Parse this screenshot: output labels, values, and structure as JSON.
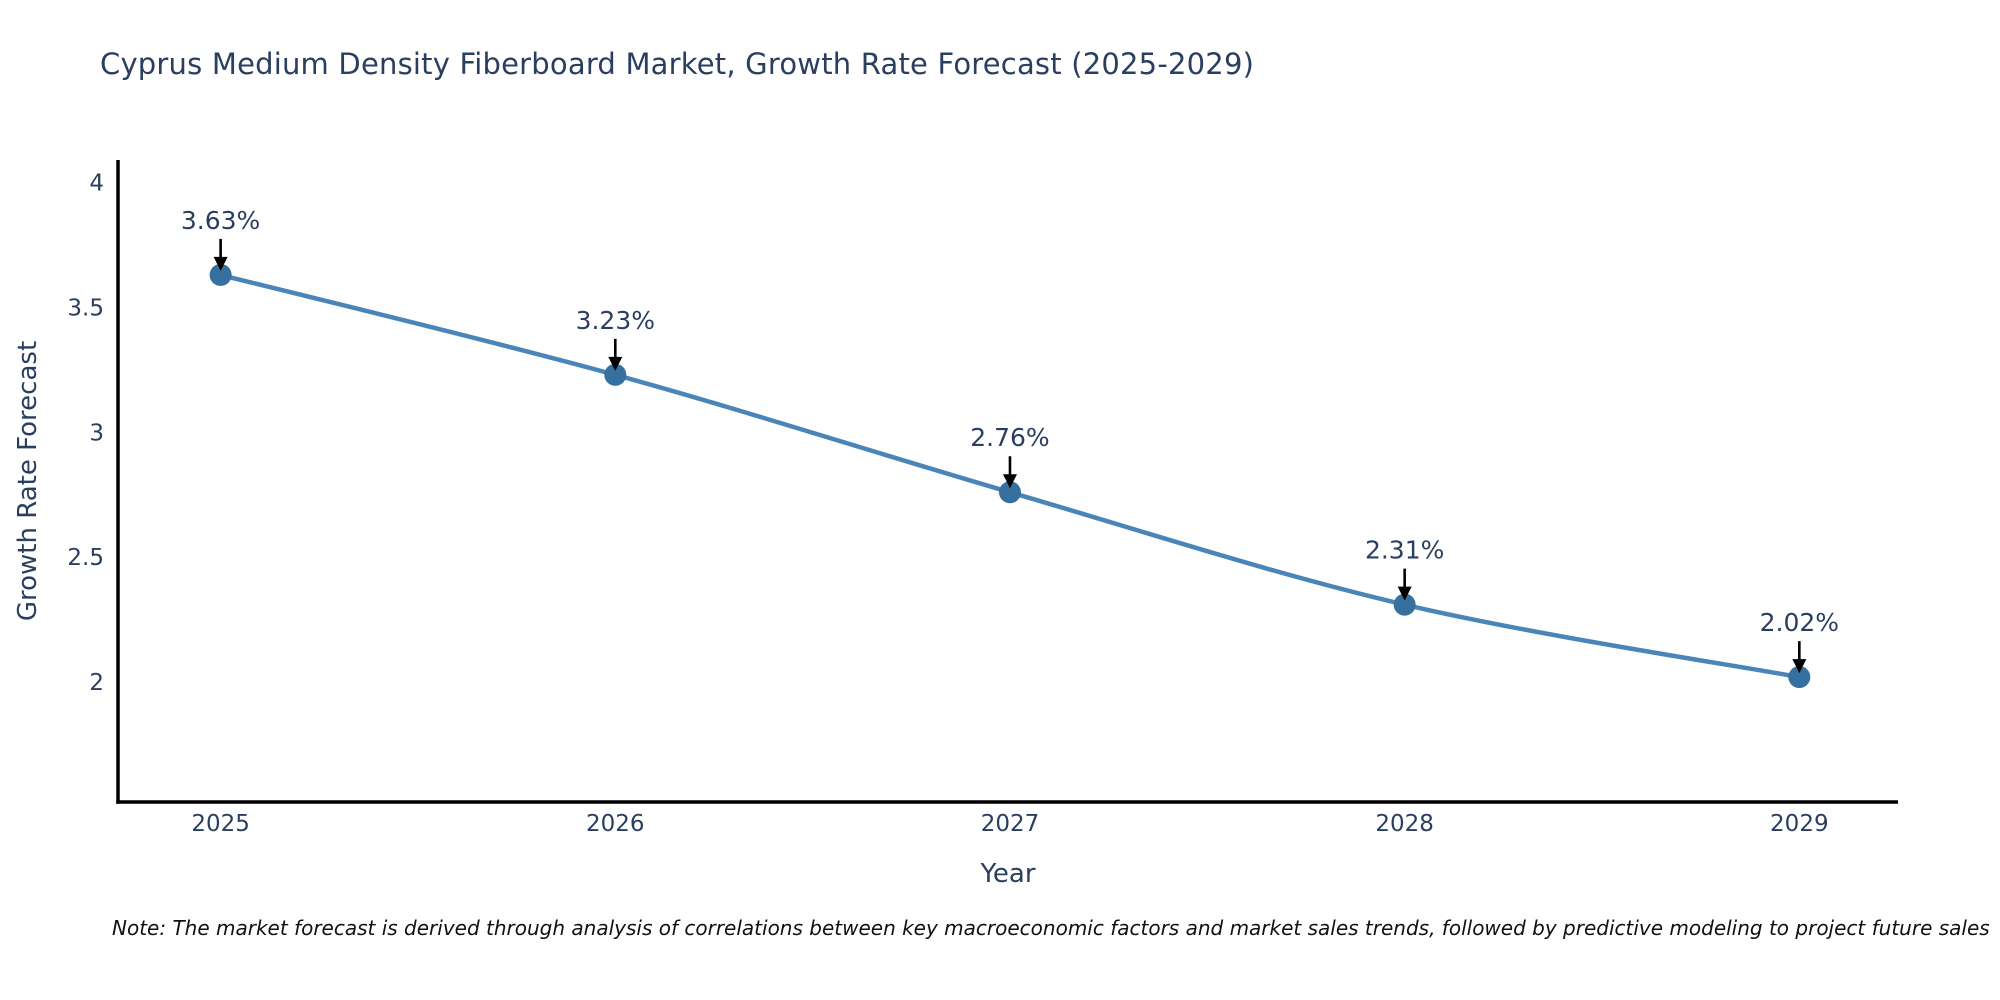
{
  "title": "Cyprus Medium Density Fiberboard Market, Growth Rate Forecast (2025-2029)",
  "note": "Note: The market forecast is derived through analysis of correlations between key macroeconomic factors and market sales trends, followed by predictive modeling to project future sales",
  "colors": {
    "line": "#4a85ba",
    "marker": "#35709f",
    "axis": "#000000",
    "text": "#2a3f5f",
    "note_text": "#111111",
    "arrow": "#000000",
    "background": "#ffffff"
  },
  "chart_data": {
    "type": "line",
    "x": [
      2025,
      2026,
      2027,
      2028,
      2029
    ],
    "values": [
      3.63,
      3.23,
      2.76,
      2.31,
      2.02
    ],
    "point_labels": [
      "3.63%",
      "3.23%",
      "2.76%",
      "2.31%",
      "2.02%"
    ],
    "series_name": "Growth Rate Forecast",
    "title": "Cyprus Medium Density Fiberboard Market, Growth Rate Forecast (2025-2029)",
    "xlabel": "Year",
    "ylabel": "Growth Rate Forecast",
    "xtick_labels": [
      "2025",
      "2026",
      "2027",
      "2028",
      "2029"
    ],
    "yticks": [
      2,
      2.5,
      3,
      3.5,
      4
    ],
    "ytick_labels": [
      "2",
      "2.5",
      "3",
      "3.5",
      "4"
    ],
    "xlim": [
      2024.74,
      2029.25
    ],
    "ylim": [
      1.52,
      4.09
    ],
    "grid": false,
    "legend": false,
    "line_shape": "spline",
    "annotation_arrows": true
  }
}
